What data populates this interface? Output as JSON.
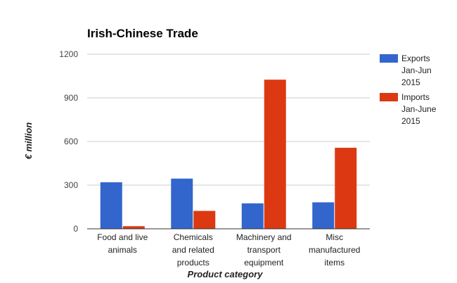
{
  "chart_data": {
    "type": "bar",
    "title": "Irish-Chinese Trade",
    "xlabel": "Product category",
    "ylabel": "€ million",
    "categories": [
      [
        "Food and live",
        "animals"
      ],
      [
        "Chemicals",
        "and related",
        "products"
      ],
      [
        "Machinery and",
        "transport",
        "equipment"
      ],
      [
        "Misc",
        "manufactured",
        "items"
      ]
    ],
    "series": [
      {
        "name": [
          "Exports",
          "Jan-Jun",
          "2015"
        ],
        "color": "#3366cc",
        "values": [
          320,
          345,
          175,
          182
        ]
      },
      {
        "name": [
          "Imports",
          "Jan-June",
          "2015"
        ],
        "color": "#dc3912",
        "values": [
          18,
          123,
          1025,
          557
        ]
      }
    ],
    "yticks": [
      0,
      300,
      600,
      900,
      1200
    ],
    "ylim": [
      0,
      1200
    ],
    "grid": true,
    "legend": "right"
  }
}
